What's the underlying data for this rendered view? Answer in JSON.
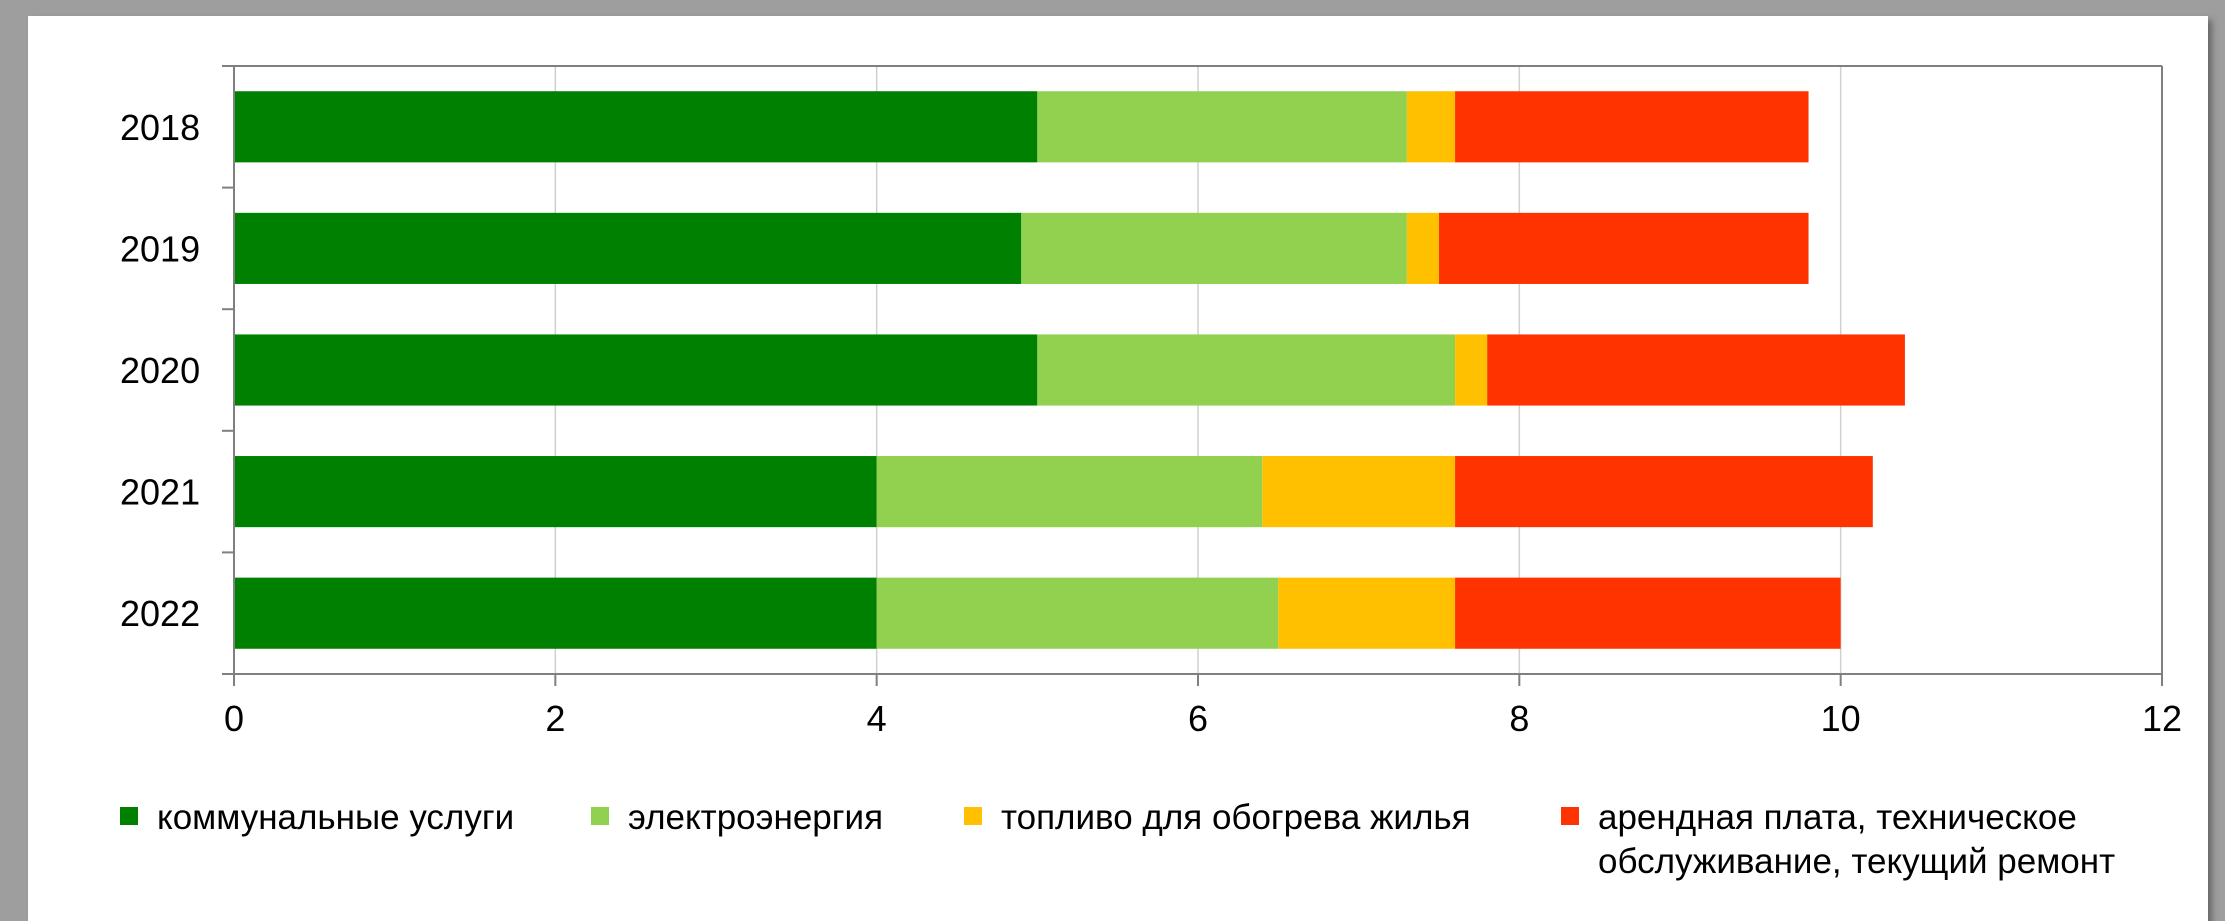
{
  "chart_data": {
    "type": "bar",
    "orientation": "horizontal",
    "stacked": true,
    "categories": [
      "2018",
      "2019",
      "2020",
      "2021",
      "2022"
    ],
    "series": [
      {
        "name": "коммунальные услуги",
        "color": "#008000",
        "values": [
          5.0,
          4.9,
          5.0,
          4.0,
          4.0
        ]
      },
      {
        "name": "электроэнергия",
        "color": "#92d050",
        "values": [
          2.3,
          2.4,
          2.6,
          2.4,
          2.5
        ]
      },
      {
        "name": "топливо для обогрева жилья",
        "color": "#ffc000",
        "values": [
          0.3,
          0.2,
          0.2,
          1.2,
          1.1
        ]
      },
      {
        "name": "арендная плата, техническое обслуживание, текущий ремонт",
        "legend_lines": [
          "арендная плата, техническое",
          "обслуживание, текущий ремонт"
        ],
        "color": "#ff3300",
        "values": [
          2.2,
          2.3,
          2.6,
          2.6,
          2.4
        ]
      }
    ],
    "xlim": [
      0,
      12
    ],
    "xticks": [
      "0",
      "2",
      "4",
      "6",
      "8",
      "10",
      "12"
    ],
    "grid": "vertical",
    "legend_position": "bottom",
    "title": "",
    "xlabel": "",
    "ylabel": ""
  }
}
